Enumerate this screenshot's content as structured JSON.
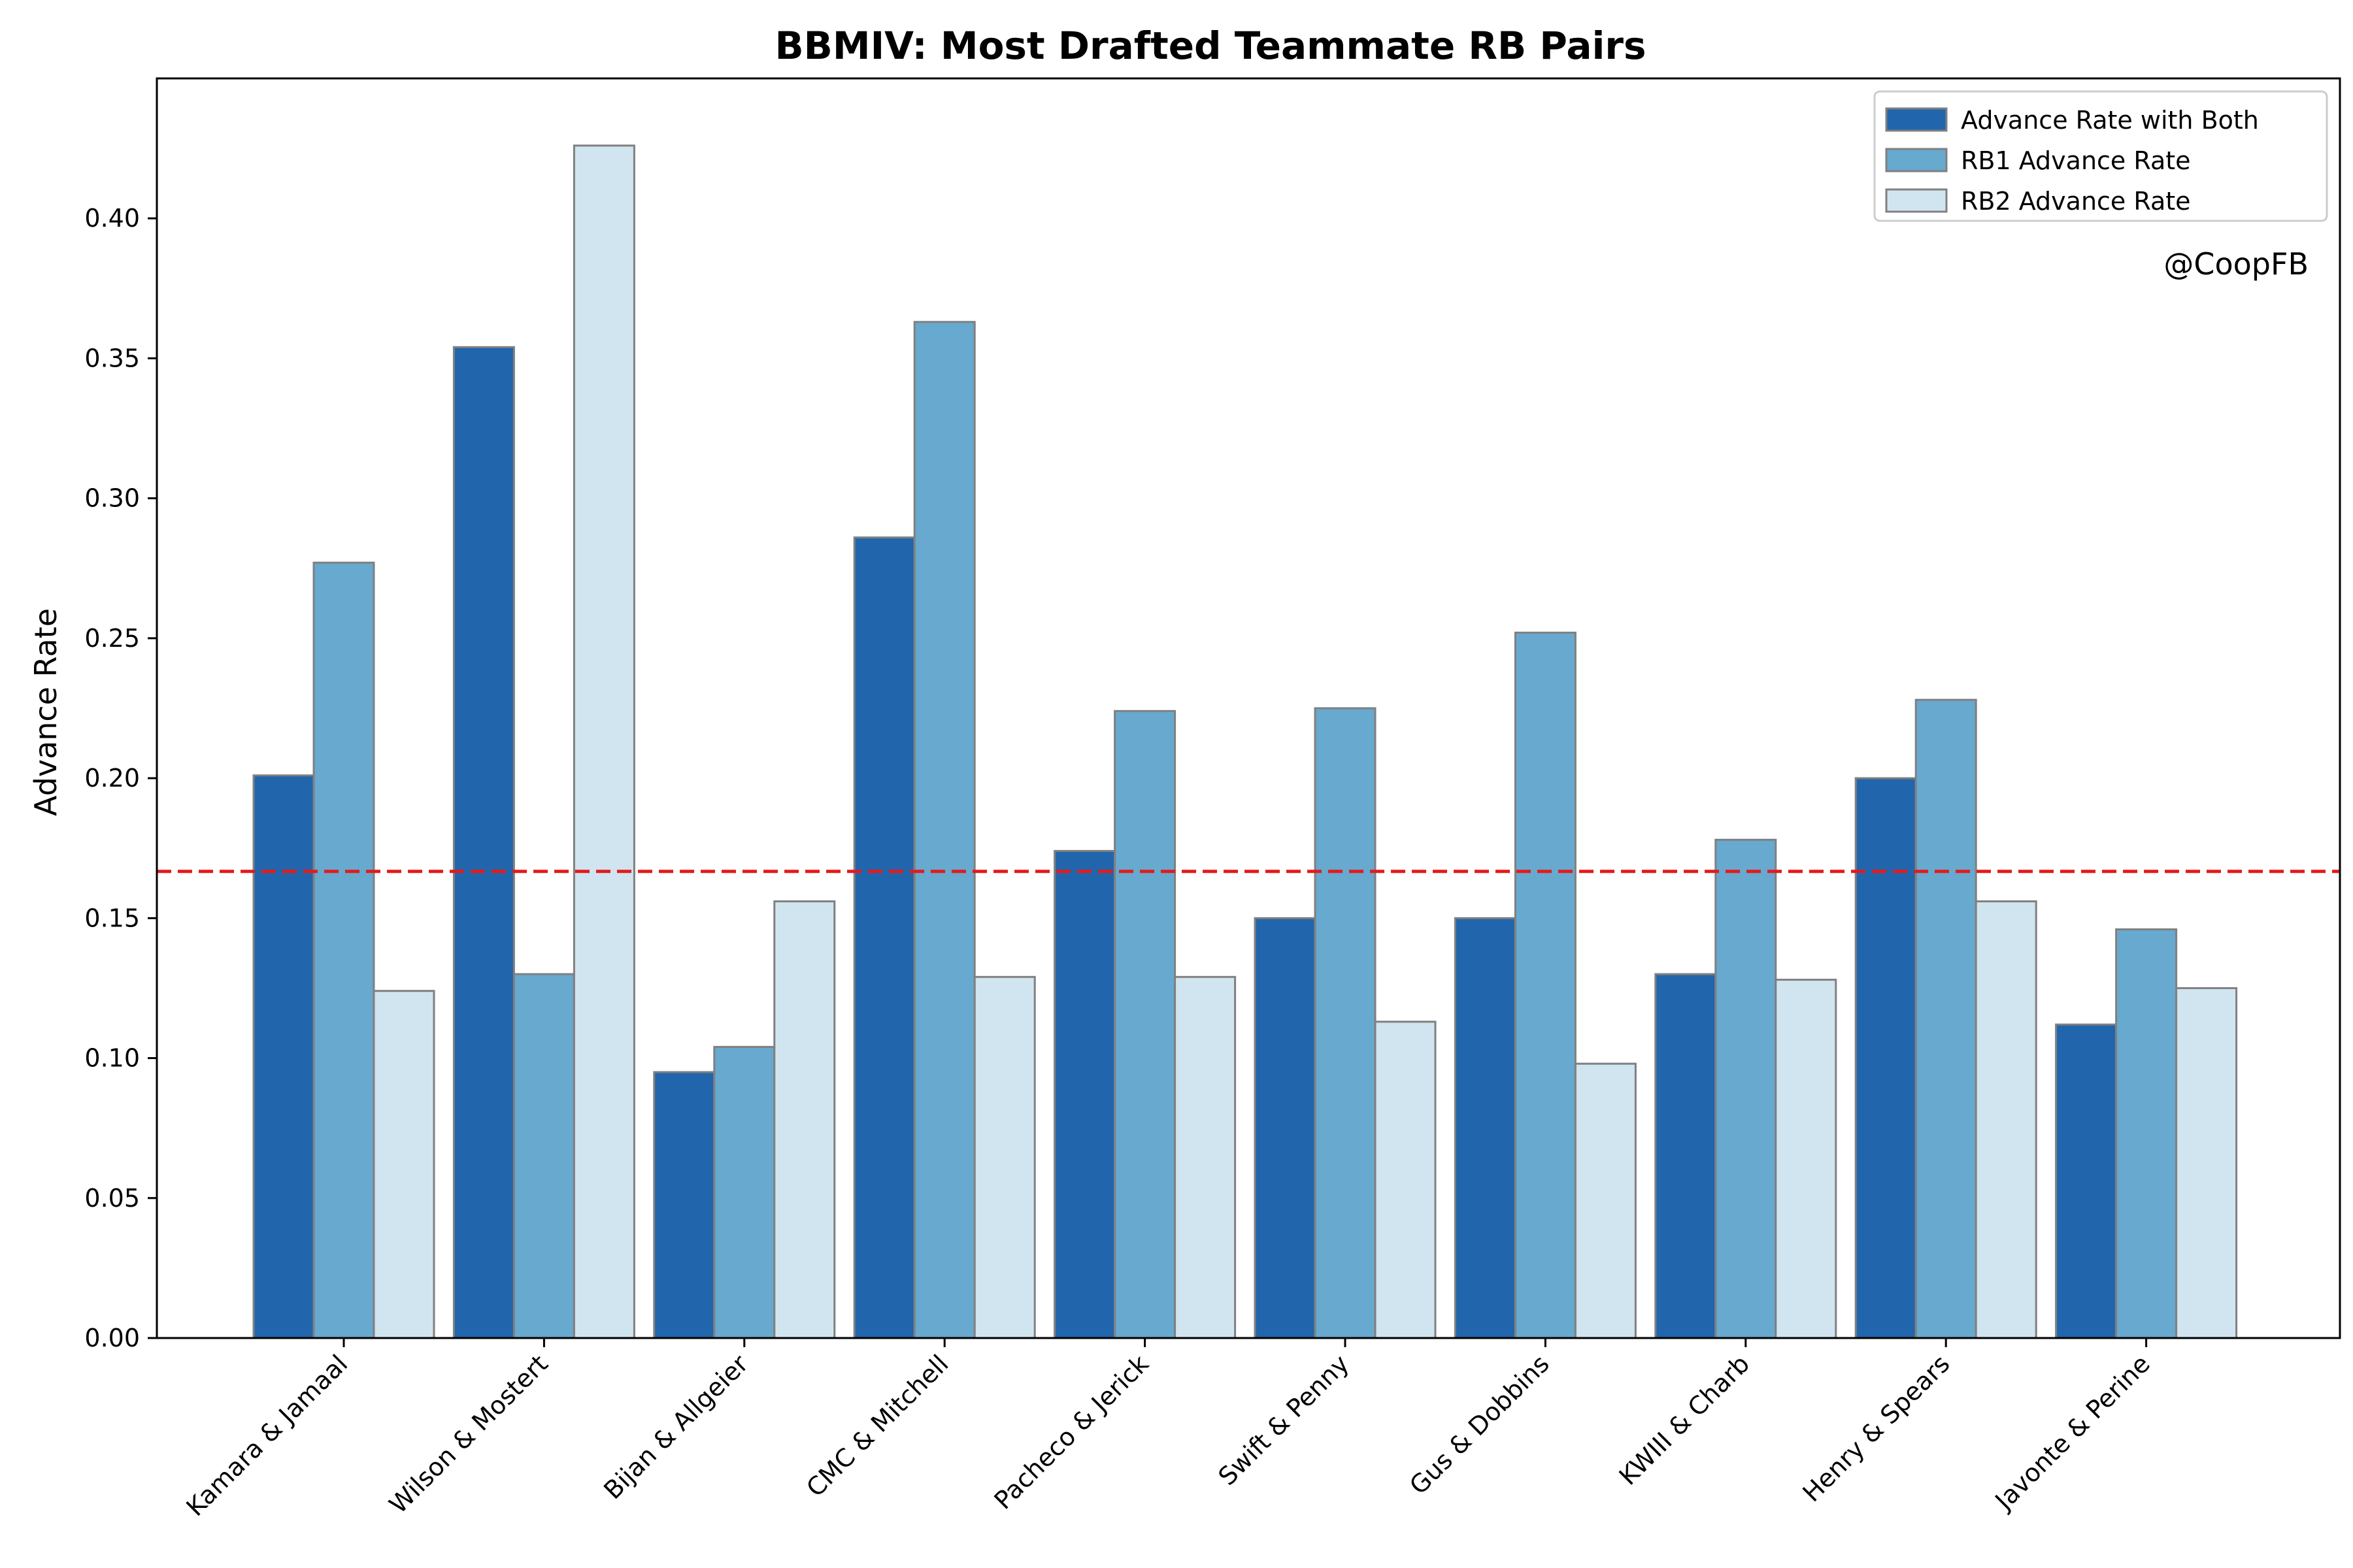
{
  "chart_data": {
    "type": "bar",
    "title": "BBMIV: Most Drafted Teammate RB Pairs",
    "xlabel": "",
    "ylabel": "Advance Rate",
    "ylim": [
      0,
      0.45
    ],
    "yticks": [
      "0.00",
      "0.05",
      "0.10",
      "0.15",
      "0.20",
      "0.25",
      "0.30",
      "0.35",
      "0.40"
    ],
    "grid": false,
    "legend_position": "top-right",
    "categories": [
      "Kamara & Jamaal",
      "Wilson & Mostert",
      "Bijan & Allgeier",
      "CMC & Mitchell",
      "Pacheco & Jerick",
      "Swift & Penny",
      "Gus & Dobbins",
      "KWIII & Charb",
      "Henry & Spears",
      "Javonte & Perine"
    ],
    "series": [
      {
        "name": "Advance Rate with Both",
        "color": "#2166ac",
        "values": [
          0.201,
          0.354,
          0.095,
          0.286,
          0.174,
          0.15,
          0.15,
          0.13,
          0.2,
          0.112
        ]
      },
      {
        "name": "RB1 Advance Rate",
        "color": "#67a9cf",
        "values": [
          0.277,
          0.13,
          0.104,
          0.363,
          0.224,
          0.225,
          0.252,
          0.178,
          0.228,
          0.146
        ]
      },
      {
        "name": "RB2 Advance Rate",
        "color": "#d1e5f0",
        "values": [
          0.124,
          0.426,
          0.156,
          0.129,
          0.129,
          0.113,
          0.098,
          0.128,
          0.156,
          0.125
        ]
      }
    ],
    "reference_line": {
      "y": 0.1667,
      "color": "#e41a1c",
      "style": "dashed"
    },
    "annotation": "@CoopFB"
  }
}
